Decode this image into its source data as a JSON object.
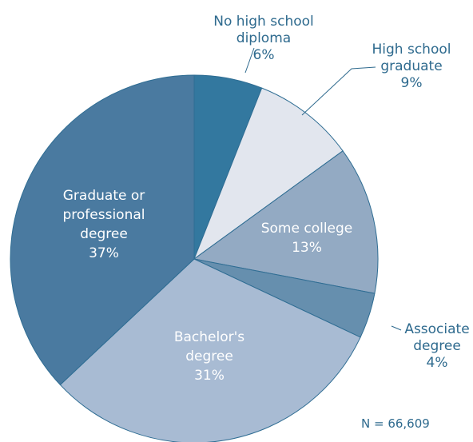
{
  "chart_data": {
    "type": "pie",
    "slices": [
      {
        "label_lines": [
          "No high school",
          "diploma"
        ],
        "value_label": "6%",
        "value": 6,
        "color": "#33789f",
        "label_color": "#2e6a8e"
      },
      {
        "label_lines": [
          "High school",
          "graduate"
        ],
        "value_label": "9%",
        "value": 9,
        "color": "#e2e6ee",
        "label_color": "#2e6a8e"
      },
      {
        "label_lines": [
          "Some college"
        ],
        "value_label": "13%",
        "value": 13,
        "color": "#93aac3",
        "label_color": "#ffffff"
      },
      {
        "label_lines": [
          "Associate",
          "degree"
        ],
        "value_label": "4%",
        "value": 4,
        "color": "#668fae",
        "label_color": "#2e6a8e"
      },
      {
        "label_lines": [
          "Bachelor's",
          "degree"
        ],
        "value_label": "31%",
        "value": 31,
        "color": "#a8bbd3",
        "label_color": "#ffffff"
      },
      {
        "label_lines": [
          "Graduate or",
          "professional",
          "degree"
        ],
        "value_label": "37%",
        "value": 37,
        "color": "#4a7aa0",
        "label_color": "#ffffff"
      }
    ],
    "start_angle_deg": 0,
    "direction": "clockwise",
    "note": "N = 66,609",
    "title": "",
    "legend": "none"
  }
}
